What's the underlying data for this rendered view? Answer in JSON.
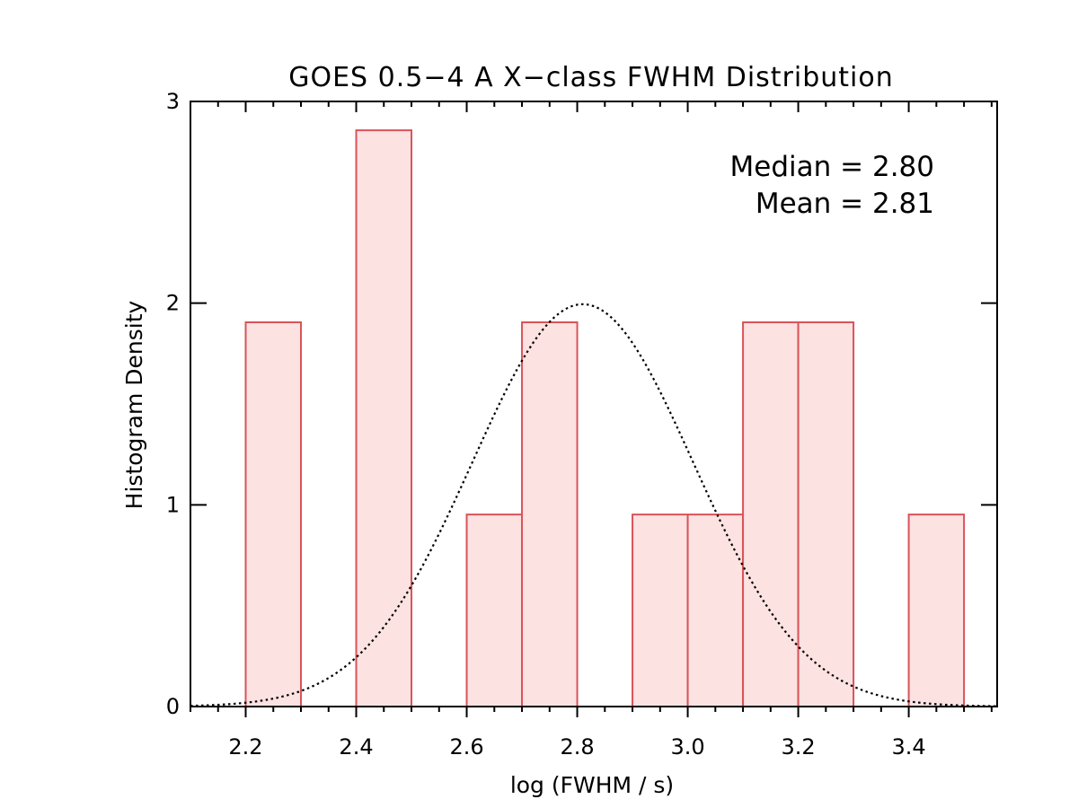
{
  "chart_data": {
    "type": "bar",
    "title": "GOES 0.5−4 A X−class FWHM Distribution",
    "xlabel": "log (FWHM / s)",
    "ylabel": "Histogram Density",
    "xlim": [
      2.1,
      3.56
    ],
    "ylim": [
      0,
      3
    ],
    "x_ticks": [
      2.2,
      2.4,
      2.6,
      2.8,
      3.0,
      3.2,
      3.4
    ],
    "x_tick_labels": [
      "2.2",
      "2.4",
      "2.6",
      "2.8",
      "3.0",
      "3.2",
      "3.4"
    ],
    "y_ticks": [
      0,
      1,
      2,
      3
    ],
    "y_tick_labels": [
      "0",
      "1",
      "2",
      "3"
    ],
    "bins": [
      {
        "x0": 2.2,
        "x1": 2.3,
        "value": 1.905
      },
      {
        "x0": 2.4,
        "x1": 2.5,
        "value": 2.857
      },
      {
        "x0": 2.6,
        "x1": 2.7,
        "value": 0.952
      },
      {
        "x0": 2.7,
        "x1": 2.8,
        "value": 1.905
      },
      {
        "x0": 2.9,
        "x1": 3.0,
        "value": 0.952
      },
      {
        "x0": 3.0,
        "x1": 3.1,
        "value": 0.952
      },
      {
        "x0": 3.1,
        "x1": 3.2,
        "value": 1.905
      },
      {
        "x0": 3.2,
        "x1": 3.3,
        "value": 1.905
      },
      {
        "x0": 3.4,
        "x1": 3.5,
        "value": 0.952
      }
    ],
    "gaussian_fit": {
      "mean": 2.81,
      "sigma": 0.2,
      "style": "dotted"
    },
    "annotations": [
      "Median = 2.80",
      "Mean = 2.81"
    ],
    "colors": {
      "bar_fill": "#fde2e2",
      "bar_edge": "#d9535a",
      "axes": "#000000",
      "curve": "#000000"
    }
  }
}
